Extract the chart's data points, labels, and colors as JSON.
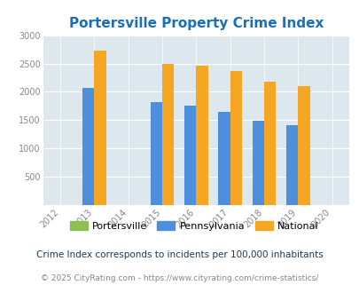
{
  "title": "Portersville Property Crime Index",
  "years_with_data": [
    2013,
    2015,
    2016,
    2017,
    2018,
    2019
  ],
  "pennsylvania": {
    "2013": 2075,
    "2015": 1825,
    "2016": 1750,
    "2017": 1640,
    "2018": 1490,
    "2019": 1415
  },
  "national": {
    "2013": 2725,
    "2015": 2500,
    "2016": 2460,
    "2017": 2360,
    "2018": 2185,
    "2019": 2100
  },
  "bar_width": 0.35,
  "xlim": [
    2011.5,
    2020.5
  ],
  "ylim": [
    0,
    3000
  ],
  "yticks": [
    0,
    500,
    1000,
    1500,
    2000,
    2500,
    3000
  ],
  "xticks": [
    2012,
    2013,
    2014,
    2015,
    2016,
    2017,
    2018,
    2019,
    2020
  ],
  "color_pennsylvania": "#4d8fdc",
  "color_national": "#f5a623",
  "color_portersville": "#8cc152",
  "background_color": "#dde8ee",
  "title_color": "#1a6fbb",
  "title_fontsize": 11,
  "legend_labels": [
    "Portersville",
    "Pennsylvania",
    "National"
  ],
  "note_text": "Crime Index corresponds to incidents per 100,000 inhabitants",
  "footer_text": "© 2025 CityRating.com - https://www.cityrating.com/crime-statistics/",
  "note_color": "#1a3a5c",
  "footer_color": "#888888",
  "tick_color": "#888888"
}
